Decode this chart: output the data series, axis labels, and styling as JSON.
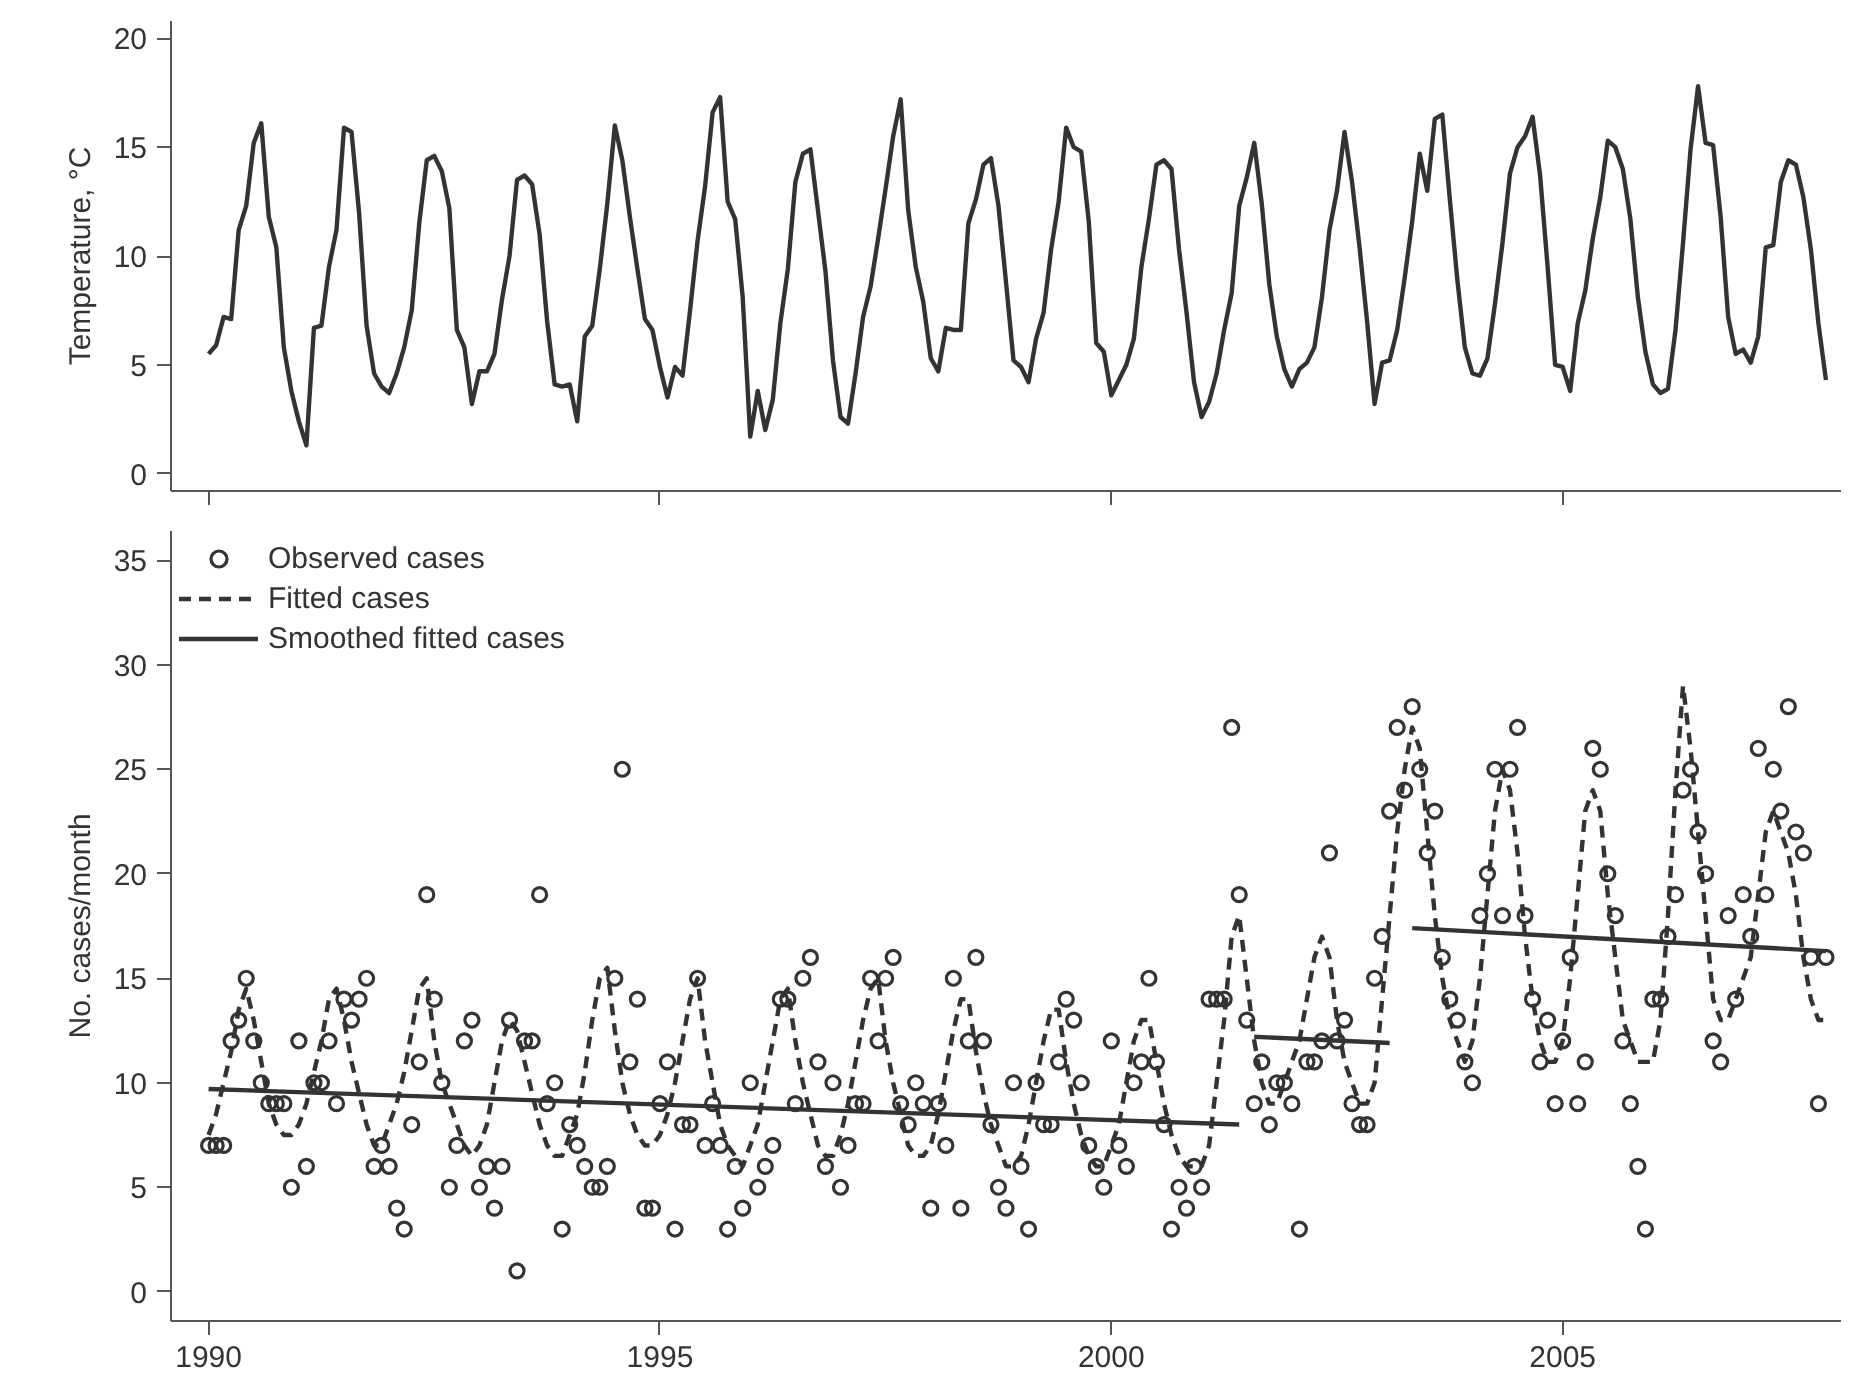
{
  "chart_data": [
    {
      "type": "line",
      "ylabel": "Temperature, °C",
      "tick_labels": "y",
      "grid": false,
      "line_style": "solid",
      "marker": "none",
      "xlim": [
        "1989-08",
        "2008-02"
      ],
      "xticks": [
        {
          "value": "1990",
          "label": null
        },
        {
          "value": "1995",
          "label": null
        },
        {
          "value": "2000",
          "label": null
        },
        {
          "value": "2005",
          "label": null
        }
      ],
      "ylim": [
        -0.8,
        20.8
      ],
      "yticks": [
        0,
        5,
        10,
        15,
        20
      ],
      "x": [
        "1990-01",
        "1990-02",
        "1990-03",
        "1990-04",
        "1990-05",
        "1990-06",
        "1990-07",
        "1990-08",
        "1990-09",
        "1990-10",
        "1990-11",
        "1990-12",
        "1991-01",
        "1991-02",
        "1991-03",
        "1991-04",
        "1991-05",
        "1991-06",
        "1991-07",
        "1991-08",
        "1991-09",
        "1991-10",
        "1991-11",
        "1991-12",
        "1992-01",
        "1992-02",
        "1992-03",
        "1992-04",
        "1992-05",
        "1992-06",
        "1992-07",
        "1992-08",
        "1992-09",
        "1992-10",
        "1992-11",
        "1992-12",
        "1993-01",
        "1993-02",
        "1993-03",
        "1993-04",
        "1993-05",
        "1993-06",
        "1993-07",
        "1993-08",
        "1993-09",
        "1993-10",
        "1993-11",
        "1993-12",
        "1994-01",
        "1994-02",
        "1994-03",
        "1994-04",
        "1994-05",
        "1994-06",
        "1994-07",
        "1994-08",
        "1994-09",
        "1994-10",
        "1994-11",
        "1994-12",
        "1995-01",
        "1995-02",
        "1995-03",
        "1995-04",
        "1995-05",
        "1995-06",
        "1995-07",
        "1995-08",
        "1995-09",
        "1995-10",
        "1995-11",
        "1995-12",
        "1996-01",
        "1996-02",
        "1996-03",
        "1996-04",
        "1996-05",
        "1996-06",
        "1996-07",
        "1996-08",
        "1996-09",
        "1996-10",
        "1996-11",
        "1996-12",
        "1997-01",
        "1997-02",
        "1997-03",
        "1997-04",
        "1997-05",
        "1997-06",
        "1997-07",
        "1997-08",
        "1997-09",
        "1997-10",
        "1997-11",
        "1997-12",
        "1998-01",
        "1998-02",
        "1998-03",
        "1998-04",
        "1998-05",
        "1998-06",
        "1998-07",
        "1998-08",
        "1998-09",
        "1998-10",
        "1998-11",
        "1998-12",
        "1999-01",
        "1999-02",
        "1999-03",
        "1999-04",
        "1999-05",
        "1999-06",
        "1999-07",
        "1999-08",
        "1999-09",
        "1999-10",
        "1999-11",
        "1999-12",
        "2000-01",
        "2000-02",
        "2000-03",
        "2000-04",
        "2000-05",
        "2000-06",
        "2000-07",
        "2000-08",
        "2000-09",
        "2000-10",
        "2000-11",
        "2000-12",
        "2001-01",
        "2001-02",
        "2001-03",
        "2001-04",
        "2001-05",
        "2001-06",
        "2001-07",
        "2001-08",
        "2001-09",
        "2001-10",
        "2001-11",
        "2001-12",
        "2002-01",
        "2002-02",
        "2002-03",
        "2002-04",
        "2002-05",
        "2002-06",
        "2002-07",
        "2002-08",
        "2002-09",
        "2002-10",
        "2002-11",
        "2002-12",
        "2003-01",
        "2003-02",
        "2003-03",
        "2003-04",
        "2003-05",
        "2003-06",
        "2003-07",
        "2003-08",
        "2003-09",
        "2003-10",
        "2003-11",
        "2003-12",
        "2004-01",
        "2004-02",
        "2004-03",
        "2004-04",
        "2004-05",
        "2004-06",
        "2004-07",
        "2004-08",
        "2004-09",
        "2004-10",
        "2004-11",
        "2004-12",
        "2005-01",
        "2005-02",
        "2005-03",
        "2005-04",
        "2005-05",
        "2005-06",
        "2005-07",
        "2005-08",
        "2005-09",
        "2005-10",
        "2005-11",
        "2005-12",
        "2006-01",
        "2006-02",
        "2006-03",
        "2006-04",
        "2006-05",
        "2006-06",
        "2006-07",
        "2006-08",
        "2006-09",
        "2006-10",
        "2006-11",
        "2006-12",
        "2007-01",
        "2007-02",
        "2007-03",
        "2007-04",
        "2007-05",
        "2007-06",
        "2007-07",
        "2007-08",
        "2007-09",
        "2007-10",
        "2007-11",
        "2007-12"
      ],
      "series": [
        {
          "color": "#333333",
          "values": [
            5.5,
            5.9,
            7.2,
            7.1,
            11.2,
            12.3,
            15.2,
            16.1,
            11.8,
            10.4,
            5.8,
            3.8,
            2.4,
            1.3,
            6.7,
            6.8,
            9.5,
            11.2,
            15.9,
            15.7,
            12.0,
            6.8,
            4.6,
            4.0,
            3.7,
            4.6,
            5.8,
            7.5,
            11.5,
            14.4,
            14.6,
            13.9,
            12.2,
            6.6,
            5.8,
            3.2,
            4.7,
            4.7,
            5.5,
            8.0,
            10.0,
            13.5,
            13.7,
            13.3,
            11.0,
            7.0,
            4.1,
            4.0,
            4.1,
            2.4,
            6.3,
            6.8,
            9.4,
            12.4,
            16.0,
            14.4,
            11.8,
            9.4,
            7.1,
            6.6,
            4.9,
            3.5,
            4.9,
            4.5,
            7.5,
            10.7,
            13.2,
            16.6,
            17.3,
            12.5,
            11.7,
            8.1,
            1.7,
            3.8,
            2.0,
            3.4,
            6.9,
            9.4,
            13.4,
            14.7,
            14.9,
            12.1,
            9.3,
            5.2,
            2.6,
            2.3,
            4.6,
            7.2,
            8.6,
            10.8,
            13.1,
            15.5,
            17.2,
            12.1,
            9.5,
            7.9,
            5.3,
            4.7,
            6.7,
            6.6,
            6.6,
            11.5,
            12.6,
            14.2,
            14.5,
            12.3,
            8.8,
            5.2,
            4.9,
            4.2,
            6.2,
            7.4,
            10.3,
            12.5,
            15.9,
            15.0,
            14.8,
            11.6,
            6.0,
            5.6,
            3.6,
            4.3,
            5.0,
            6.2,
            9.5,
            11.7,
            14.2,
            14.4,
            14.0,
            10.3,
            7.4,
            4.2,
            2.6,
            3.3,
            4.6,
            6.6,
            8.3,
            12.3,
            13.6,
            15.2,
            12.4,
            8.7,
            6.3,
            4.8,
            4.0,
            4.8,
            5.1,
            5.8,
            8.1,
            11.2,
            13.0,
            15.7,
            13.4,
            10.4,
            7.0,
            3.2,
            5.1,
            5.2,
            6.6,
            9.0,
            11.6,
            14.7,
            13.0,
            16.3,
            16.5,
            12.6,
            8.9,
            5.8,
            4.6,
            4.5,
            5.3,
            7.8,
            10.6,
            13.8,
            15.0,
            15.5,
            16.4,
            13.7,
            9.5,
            5.0,
            4.9,
            3.8,
            6.9,
            8.4,
            10.8,
            12.7,
            15.3,
            15.0,
            14.0,
            11.7,
            8.1,
            5.6,
            4.1,
            3.7,
            3.9,
            6.6,
            10.6,
            14.9,
            17.8,
            15.2,
            15.1,
            11.8,
            7.2,
            5.5,
            5.7,
            5.1,
            6.3,
            10.4,
            10.5,
            13.4,
            14.4,
            14.2,
            12.7,
            10.3,
            6.9,
            4.3
          ]
        }
      ]
    },
    {
      "type": "line",
      "ylabel": "No. cases/month",
      "grid": false,
      "legend": "top left",
      "xlim": [
        "1989-08",
        "2008-02"
      ],
      "xticks": [
        "1990",
        "1995",
        "2000",
        "2005"
      ],
      "ylim": [
        -1.4,
        36.4
      ],
      "yticks": [
        0,
        5,
        10,
        15,
        20,
        25,
        30,
        35
      ],
      "x": [
        "1990-01",
        "1990-02",
        "1990-03",
        "1990-04",
        "1990-05",
        "1990-06",
        "1990-07",
        "1990-08",
        "1990-09",
        "1990-10",
        "1990-11",
        "1990-12",
        "1991-01",
        "1991-02",
        "1991-03",
        "1991-04",
        "1991-05",
        "1991-06",
        "1991-07",
        "1991-08",
        "1991-09",
        "1991-10",
        "1991-11",
        "1991-12",
        "1992-01",
        "1992-02",
        "1992-03",
        "1992-04",
        "1992-05",
        "1992-06",
        "1992-07",
        "1992-08",
        "1992-09",
        "1992-10",
        "1992-11",
        "1992-12",
        "1993-01",
        "1993-02",
        "1993-03",
        "1993-04",
        "1993-05",
        "1993-06",
        "1993-07",
        "1993-08",
        "1993-09",
        "1993-10",
        "1993-11",
        "1993-12",
        "1994-01",
        "1994-02",
        "1994-03",
        "1994-04",
        "1994-05",
        "1994-06",
        "1994-07",
        "1994-08",
        "1994-09",
        "1994-10",
        "1994-11",
        "1994-12",
        "1995-01",
        "1995-02",
        "1995-03",
        "1995-04",
        "1995-05",
        "1995-06",
        "1995-07",
        "1995-08",
        "1995-09",
        "1995-10",
        "1995-11",
        "1995-12",
        "1996-01",
        "1996-02",
        "1996-03",
        "1996-04",
        "1996-05",
        "1996-06",
        "1996-07",
        "1996-08",
        "1996-09",
        "1996-10",
        "1996-11",
        "1996-12",
        "1997-01",
        "1997-02",
        "1997-03",
        "1997-04",
        "1997-05",
        "1997-06",
        "1997-07",
        "1997-08",
        "1997-09",
        "1997-10",
        "1997-11",
        "1997-12",
        "1998-01",
        "1998-02",
        "1998-03",
        "1998-04",
        "1998-05",
        "1998-06",
        "1998-07",
        "1998-08",
        "1998-09",
        "1998-10",
        "1998-11",
        "1998-12",
        "1999-01",
        "1999-02",
        "1999-03",
        "1999-04",
        "1999-05",
        "1999-06",
        "1999-07",
        "1999-08",
        "1999-09",
        "1999-10",
        "1999-11",
        "1999-12",
        "2000-01",
        "2000-02",
        "2000-03",
        "2000-04",
        "2000-05",
        "2000-06",
        "2000-07",
        "2000-08",
        "2000-09",
        "2000-10",
        "2000-11",
        "2000-12",
        "2001-01",
        "2001-02",
        "2001-03",
        "2001-04",
        "2001-05",
        "2001-06",
        "2001-07",
        "2001-08",
        "2001-09",
        "2001-10",
        "2001-11",
        "2001-12",
        "2002-01",
        "2002-02",
        "2002-03",
        "2002-04",
        "2002-05",
        "2002-06",
        "2002-07",
        "2002-08",
        "2002-09",
        "2002-10",
        "2002-11",
        "2002-12",
        "2003-01",
        "2003-02",
        "2003-03",
        "2003-04",
        "2003-05",
        "2003-06",
        "2003-07",
        "2003-08",
        "2003-09",
        "2003-10",
        "2003-11",
        "2003-12",
        "2004-01",
        "2004-02",
        "2004-03",
        "2004-04",
        "2004-05",
        "2004-06",
        "2004-07",
        "2004-08",
        "2004-09",
        "2004-10",
        "2004-11",
        "2004-12",
        "2005-01",
        "2005-02",
        "2005-03",
        "2005-04",
        "2005-05",
        "2005-06",
        "2005-07",
        "2005-08",
        "2005-09",
        "2005-10",
        "2005-11",
        "2005-12",
        "2006-01",
        "2006-02",
        "2006-03",
        "2006-04",
        "2006-05",
        "2006-06",
        "2006-07",
        "2006-08",
        "2006-09",
        "2006-10",
        "2006-11",
        "2006-12",
        "2007-01",
        "2007-02",
        "2007-03",
        "2007-04",
        "2007-05",
        "2007-06",
        "2007-07",
        "2007-08",
        "2007-09",
        "2007-10",
        "2007-11",
        "2007-12"
      ],
      "series": [
        {
          "name": "Observed cases",
          "type": "scatter",
          "marker": "circle",
          "color": "#333333",
          "values": [
            7,
            7,
            7,
            12,
            13,
            15,
            12,
            10,
            9,
            9,
            9,
            5,
            12,
            6,
            10,
            10,
            12,
            9,
            14,
            13,
            14,
            15,
            6,
            7,
            6,
            4,
            3,
            8,
            11,
            19,
            14,
            10,
            5,
            7,
            12,
            13,
            5,
            6,
            4,
            6,
            13,
            1,
            12,
            12,
            19,
            9,
            10,
            3,
            8,
            7,
            6,
            5,
            5,
            6,
            15,
            25,
            11,
            14,
            4,
            4,
            9,
            11,
            3,
            8,
            8,
            15,
            7,
            9,
            7,
            3,
            6,
            4,
            10,
            5,
            6,
            7,
            14,
            14,
            9,
            15,
            16,
            11,
            6,
            10,
            5,
            7,
            9,
            9,
            15,
            12,
            15,
            16,
            9,
            8,
            10,
            9,
            4,
            9,
            7,
            15,
            4,
            12,
            16,
            12,
            8,
            5,
            4,
            10,
            6,
            3,
            10,
            8,
            8,
            11,
            14,
            13,
            10,
            7,
            6,
            5,
            12,
            7,
            6,
            10,
            11,
            15,
            11,
            8,
            3,
            5,
            4,
            6,
            5,
            14,
            14,
            14,
            27,
            19,
            13,
            9,
            11,
            8,
            10,
            10,
            9,
            3,
            11,
            11,
            12,
            21,
            12,
            13,
            9,
            8,
            8,
            15,
            17,
            23,
            27,
            24,
            28,
            25,
            21,
            23,
            16,
            14,
            13,
            11,
            10,
            18,
            20,
            25,
            18,
            25,
            27,
            18,
            14,
            11,
            13,
            9,
            12,
            16,
            9,
            11,
            26,
            25,
            20,
            18,
            12,
            9,
            6,
            3,
            14,
            14,
            17,
            19,
            24,
            25,
            22,
            20,
            12,
            11,
            18,
            14,
            19,
            17,
            26,
            19,
            25,
            23,
            28,
            22,
            21,
            16,
            9,
            16
          ]
        },
        {
          "name": "Fitted cases",
          "type": "line",
          "line_style": "dashed",
          "marker": "none",
          "color": "#333333",
          "values": [
            7.5,
            8.5,
            10,
            11.5,
            13.5,
            14.5,
            13,
            11,
            9,
            8,
            7.5,
            7.5,
            8,
            9,
            10.5,
            12,
            14,
            14.5,
            13,
            11,
            9.5,
            8,
            7,
            7,
            8,
            9,
            10.5,
            12.5,
            14.5,
            15,
            12,
            10,
            9,
            8,
            7,
            6.5,
            7,
            8,
            10,
            12,
            13,
            12.5,
            11,
            9.5,
            8,
            7,
            6.5,
            6.5,
            7.5,
            8.5,
            10.5,
            13,
            15,
            15.5,
            12.5,
            10,
            8.5,
            7.5,
            7,
            7,
            7.5,
            8.5,
            10,
            12,
            14,
            15,
            12,
            10,
            8,
            7,
            6.5,
            6,
            7,
            8,
            10,
            12,
            14,
            14.5,
            12,
            10,
            8.5,
            7,
            6.5,
            6.5,
            7.5,
            9,
            11,
            13,
            14.5,
            15,
            12,
            10,
            8.5,
            7,
            6.5,
            6.5,
            7,
            8.5,
            10.5,
            12.5,
            14,
            14,
            11.5,
            9.5,
            8,
            7,
            6,
            6,
            6.5,
            8,
            10,
            12,
            13.5,
            13.5,
            11,
            9,
            7.5,
            6.5,
            6,
            6,
            7,
            8,
            10,
            12,
            13,
            13,
            11,
            9,
            7.5,
            6.5,
            6,
            6,
            6,
            7,
            10,
            13,
            17,
            18,
            15,
            12,
            10,
            9,
            9,
            10,
            11,
            12,
            14,
            16,
            17,
            16,
            13,
            11,
            10,
            9,
            9,
            10,
            14,
            18,
            22,
            25,
            27,
            26,
            22,
            18,
            15,
            13,
            12,
            11,
            12,
            15,
            19,
            23,
            25,
            24,
            21,
            17,
            14,
            12,
            11,
            11,
            12,
            15,
            19,
            23,
            24,
            23,
            19,
            16,
            13,
            12,
            11,
            11,
            11,
            13,
            18,
            24,
            29,
            26,
            22,
            18,
            14,
            13,
            13,
            14,
            15,
            16,
            19,
            22,
            23,
            22,
            21,
            19,
            16,
            14,
            13,
            13
          ]
        },
        {
          "name": "Smoothed fitted cases",
          "type": "line",
          "line_style": "solid",
          "marker": "none",
          "color": "#333333",
          "x": [
            "1990-01",
            "2001-06",
            "2001-07",
            "2001-08",
            "2003-02",
            "2003-03",
            "2003-05",
            "2007-12"
          ],
          "values": [
            9.7,
            8.0,
            null,
            12.2,
            11.9,
            null,
            17.4,
            16.3
          ]
        }
      ]
    }
  ]
}
